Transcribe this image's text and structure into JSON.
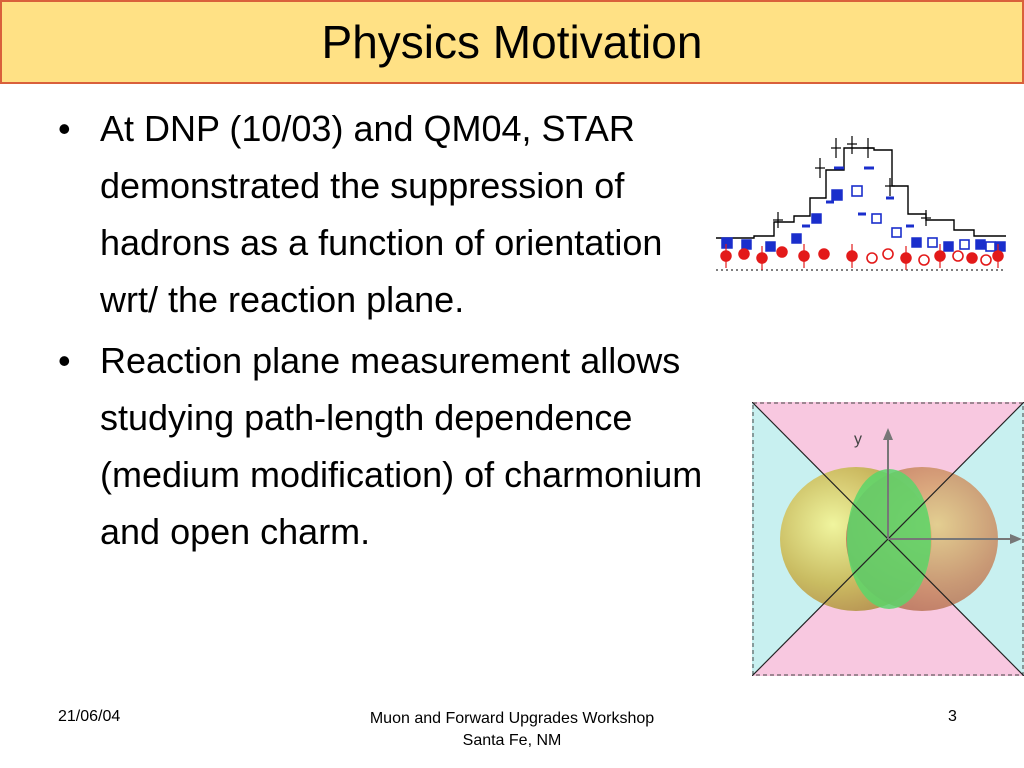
{
  "slide": {
    "title": "Physics Motivation",
    "bullets": [
      "At DNP (10/03) and QM04, STAR demonstrated the suppression of hadrons as a function of orientation wrt/ the reaction plane.",
      "Reaction plane measurement allows studying path-length dependence (medium modification) of charmonium and open charm."
    ],
    "bullet_symbol": "•"
  },
  "figures": {
    "azimuthal_plot": {
      "series_colors": {
        "reference": "#000000",
        "in_plane": "#1a2ecc",
        "out_of_plane": "#e31a1a"
      }
    },
    "reaction_plane_diagram": {
      "y_axis_label": "y",
      "colors": {
        "in_plane_region": "#c8f0f0",
        "out_plane_region": "#f8c8e0",
        "overlap": "#5ad66a"
      }
    }
  },
  "footer": {
    "date": "21/06/04",
    "event_line1": "Muon and Forward Upgrades Workshop",
    "event_line2": "Santa Fe, NM",
    "page_number": "3"
  }
}
